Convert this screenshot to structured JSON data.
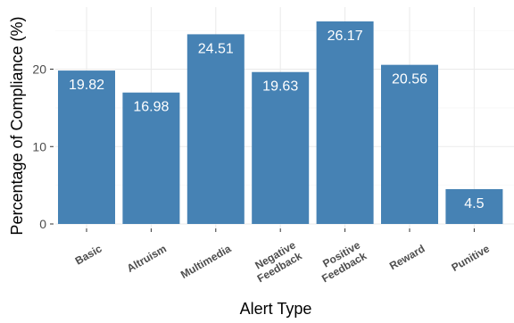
{
  "chart_data": {
    "type": "bar",
    "categories": [
      "Basic",
      "Altruism",
      "Multimedia",
      "Negative Feedback",
      "Positive Feedback",
      "Reward",
      "Punitive"
    ],
    "values": [
      19.82,
      16.98,
      24.51,
      19.63,
      26.17,
      20.56,
      4.5
    ],
    "value_labels": [
      "19.82",
      "16.98",
      "24.51",
      "19.63",
      "26.17",
      "20.56",
      "4.5"
    ],
    "xlabel": "Alert Type",
    "ylabel": "Percentage of Compliance (%)",
    "ylim": [
      0,
      27.5
    ],
    "yticks": [
      0,
      10,
      20
    ],
    "grid": true,
    "legend": "none",
    "bar_color": "#4682B4"
  }
}
